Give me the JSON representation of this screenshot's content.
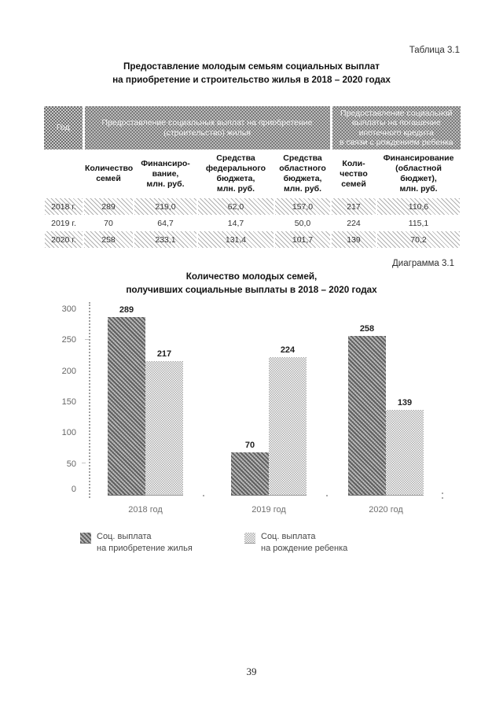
{
  "table_caption": "Таблица 3.1",
  "table_title_lines": [
    "Предоставление молодым семьям социальных выплат",
    "на приобретение и строительство жилья в 2018 – 2020 годах"
  ],
  "table": {
    "header_groups": [
      "Год",
      "Предоставление социальных выплат на приобретение\n(строительство) жилья",
      "Предоставление социальной\nвыплаты на погашение\nипотечного кредита\nв связи с рождением ребенка"
    ],
    "columns": [
      "Количество\nсемей",
      "Финансиро-\nвание,\nмлн. руб.",
      "Средства\nфедерального\nбюджета,\nмлн. руб.",
      "Средства\nобластного\nбюджета,\nмлн. руб.",
      "Коли-\nчество\nсемей",
      "Финансирование\n(областной\nбюджет),\nмлн. руб."
    ],
    "rows": [
      {
        "year": "2018 г.",
        "values": [
          "289",
          "219,0",
          "62,0",
          "157,0",
          "217",
          "110,6"
        ]
      },
      {
        "year": "2019 г.",
        "values": [
          "70",
          "64,7",
          "14,7",
          "50,0",
          "224",
          "115,1"
        ]
      },
      {
        "year": "2020 г.",
        "values": [
          "258",
          "233,1",
          "131,4",
          "101,7",
          "139",
          "70,2"
        ]
      }
    ]
  },
  "diagram_caption": "Диаграмма 3.1",
  "chart_data": {
    "type": "bar",
    "title": "Количество молодых семей, получивших социальные выплаты в 2018 – 2020 годах",
    "title_lines": [
      "Количество молодых семей,",
      "получивших социальные выплаты в 2018 – 2020 годах"
    ],
    "categories": [
      "2018 год",
      "2019 год",
      "2020 год"
    ],
    "series": [
      {
        "name": "Соц. выплата на приобретение жилья",
        "legend_label": "Соц. выплата\nна приобретение жилья",
        "values": [
          289,
          70,
          258
        ]
      },
      {
        "name": "Соц. выплата на рождение ребенка",
        "legend_label": "Соц. выплата\nна рождение ребенка",
        "values": [
          217,
          224,
          139
        ]
      }
    ],
    "ylabel": "",
    "xlabel": "",
    "ylim": [
      0,
      300
    ],
    "yticks": [
      0,
      50,
      100,
      150,
      200,
      250,
      300
    ],
    "grid": false,
    "legend_position": "bottom"
  },
  "page_number": "39"
}
